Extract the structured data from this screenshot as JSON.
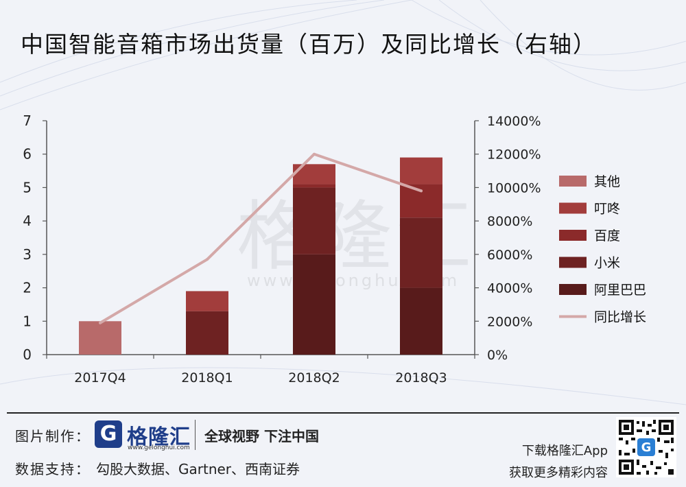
{
  "title": "中国智能音箱市场出货量（百万）及同比增长（右轴）",
  "watermark": {
    "brand": "格隆汇",
    "url": "www.gelonghui.com"
  },
  "colors": {
    "qita": "#b86a6a",
    "dingdong": "#a23d3c",
    "baidu": "#8b2a2a",
    "xiaomi": "#6e2222",
    "alibaba": "#581b1b",
    "growth_line": "#d4a8a8",
    "axis": "#555555"
  },
  "chart_data": {
    "type": "bar",
    "stacked": true,
    "title": "中国智能音箱市场出货量（百万）及同比增长（右轴）",
    "categories": [
      "2017Q4",
      "2018Q1",
      "2018Q2",
      "2018Q3"
    ],
    "series": [
      {
        "name": "阿里巴巴",
        "values": [
          0,
          0,
          3.0,
          2.0
        ]
      },
      {
        "name": "小米",
        "values": [
          0,
          1.3,
          2.0,
          2.1
        ]
      },
      {
        "name": "百度",
        "values": [
          0,
          0,
          0.1,
          1.0
        ]
      },
      {
        "name": "叮咚",
        "values": [
          0,
          0.6,
          0.6,
          0.8
        ]
      },
      {
        "name": "其他",
        "values": [
          1.0,
          0,
          0,
          0
        ]
      }
    ],
    "line": {
      "name": "同比增长",
      "axis": "right",
      "values": [
        1900,
        5700,
        12000,
        9800
      ],
      "unit": "%"
    },
    "ylim": [
      0,
      7
    ],
    "yticks": [
      "0",
      "1",
      "2",
      "3",
      "4",
      "5",
      "6",
      "7"
    ],
    "y2lim": [
      0,
      14000
    ],
    "y2ticks": [
      "0%",
      "2000%",
      "4000%",
      "6000%",
      "8000%",
      "10000%",
      "12000%",
      "14000%"
    ],
    "legend_order": [
      "其他",
      "叮咚",
      "百度",
      "小米",
      "阿里巴巴",
      "同比增长"
    ],
    "legend_position": "right"
  },
  "footer": {
    "made_by_label": "图片制作：",
    "brand": "格隆汇",
    "brand_url": "www.gelonghui.com",
    "slogan": "全球视野 下注中国",
    "data_label": "数据支持：",
    "data_sources": "勾股大数据、Gartner、西南证券",
    "app_line1": "下载格隆汇App",
    "app_line2": "获取更多精彩内容"
  }
}
